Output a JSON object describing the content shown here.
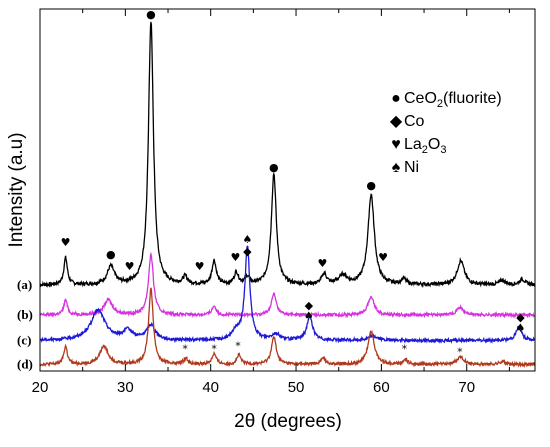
{
  "chart_data": {
    "type": "line",
    "title": "",
    "xlabel": "2θ (degrees)",
    "ylabel": "Intensity (a.u)",
    "xlim": [
      20,
      78
    ],
    "xticks": [
      20,
      30,
      40,
      50,
      60,
      70
    ],
    "ylim": [
      0,
      1
    ],
    "grid": false,
    "legend": {
      "placement": "top-right",
      "entries": [
        {
          "symbol": "●",
          "text": "CeO",
          "sub": "2",
          "suffix": "(fluorite)"
        },
        {
          "symbol": "◆",
          "text": "Co",
          "sub": "",
          "suffix": ""
        },
        {
          "symbol": "♥",
          "text": "La",
          "sub": "2",
          "suffix": "O",
          "sub2": "3"
        },
        {
          "symbol": "♠",
          "text": "Ni",
          "sub": "",
          "suffix": ""
        }
      ]
    },
    "series": [
      {
        "label": "(a)",
        "color": "#000000",
        "baseline": 0.27,
        "noise": 0.006,
        "peaks": [
          [
            23.0,
            0.09,
            0.25
          ],
          [
            28.3,
            0.06,
            0.5
          ],
          [
            33.0,
            0.88,
            0.35
          ],
          [
            37.0,
            0.025,
            0.3
          ],
          [
            40.4,
            0.08,
            0.3
          ],
          [
            43.0,
            0.04,
            0.3
          ],
          [
            44.3,
            0.025,
            0.3
          ],
          [
            47.4,
            0.37,
            0.35
          ],
          [
            53.3,
            0.035,
            0.35
          ],
          [
            55.5,
            0.03,
            0.6
          ],
          [
            58.8,
            0.3,
            0.45
          ],
          [
            62.6,
            0.02,
            0.3
          ],
          [
            69.3,
            0.08,
            0.5
          ],
          [
            74.2,
            0.015,
            0.4
          ],
          [
            76.5,
            0.018,
            0.4
          ]
        ]
      },
      {
        "label": "(b)",
        "color": "#d633e0",
        "baseline": 0.17,
        "noise": 0.005,
        "peaks": [
          [
            23.0,
            0.05,
            0.25
          ],
          [
            28.0,
            0.05,
            0.6
          ],
          [
            33.0,
            0.2,
            0.35
          ],
          [
            40.4,
            0.03,
            0.3
          ],
          [
            47.4,
            0.07,
            0.35
          ],
          [
            58.8,
            0.06,
            0.45
          ],
          [
            69.2,
            0.025,
            0.5
          ]
        ]
      },
      {
        "label": "(c)",
        "color": "#1c18d6",
        "baseline": 0.085,
        "noise": 0.005,
        "peaks": [
          [
            26.8,
            0.1,
            1.0
          ],
          [
            30.3,
            0.03,
            0.7
          ],
          [
            33.0,
            0.05,
            0.6
          ],
          [
            43.0,
            0.03,
            0.5
          ],
          [
            44.3,
            0.31,
            0.35
          ],
          [
            47.6,
            0.02,
            0.6
          ],
          [
            51.6,
            0.08,
            0.4
          ],
          [
            59.0,
            0.015,
            0.6
          ],
          [
            76.1,
            0.045,
            0.4
          ]
        ]
      },
      {
        "label": "(d)",
        "color": "#b0391d",
        "baseline": 0.005,
        "noise": 0.005,
        "peaks": [
          [
            23.0,
            0.06,
            0.25
          ],
          [
            27.5,
            0.06,
            0.6
          ],
          [
            33.0,
            0.25,
            0.33
          ],
          [
            37.1,
            0.02,
            0.3
          ],
          [
            40.4,
            0.035,
            0.3
          ],
          [
            43.3,
            0.03,
            0.3
          ],
          [
            47.4,
            0.09,
            0.35
          ],
          [
            53.2,
            0.02,
            0.35
          ],
          [
            58.8,
            0.11,
            0.45
          ],
          [
            62.8,
            0.015,
            0.35
          ],
          [
            69.3,
            0.025,
            0.5
          ],
          [
            74.2,
            0.01,
            0.4
          ]
        ]
      }
    ],
    "annotations": [
      {
        "glyph": "♥",
        "x": 23.0,
        "y": 0.4
      },
      {
        "glyph": "●",
        "x": 28.3,
        "y": 0.36
      },
      {
        "glyph": "♥",
        "x": 30.5,
        "y": 0.32
      },
      {
        "glyph": "●",
        "x": 33.0,
        "y": 1.16
      },
      {
        "glyph": "♥",
        "x": 38.7,
        "y": 0.32
      },
      {
        "glyph": "♥",
        "x": 42.9,
        "y": 0.35
      },
      {
        "glyph": "♠",
        "x": 44.3,
        "y": 0.41
      },
      {
        "glyph": "◆",
        "x": 44.3,
        "y": 0.37
      },
      {
        "glyph": "●",
        "x": 47.4,
        "y": 0.65
      },
      {
        "glyph": "♥",
        "x": 53.1,
        "y": 0.33
      },
      {
        "glyph": "●",
        "x": 58.8,
        "y": 0.59
      },
      {
        "glyph": "♥",
        "x": 60.2,
        "y": 0.35
      },
      {
        "glyph": "◆",
        "x": 51.5,
        "y": 0.19
      },
      {
        "glyph": "♠",
        "x": 51.5,
        "y": 0.155
      },
      {
        "glyph": "◆",
        "x": 76.3,
        "y": 0.15
      },
      {
        "glyph": "♠",
        "x": 76.3,
        "y": 0.115
      },
      {
        "glyph": "*",
        "x": 37.0,
        "y": 0.045
      },
      {
        "glyph": "*",
        "x": 40.4,
        "y": 0.045
      },
      {
        "glyph": "*",
        "x": 43.2,
        "y": 0.055
      },
      {
        "glyph": "*",
        "x": 62.7,
        "y": 0.045
      },
      {
        "glyph": "*",
        "x": 69.2,
        "y": 0.035
      }
    ]
  }
}
